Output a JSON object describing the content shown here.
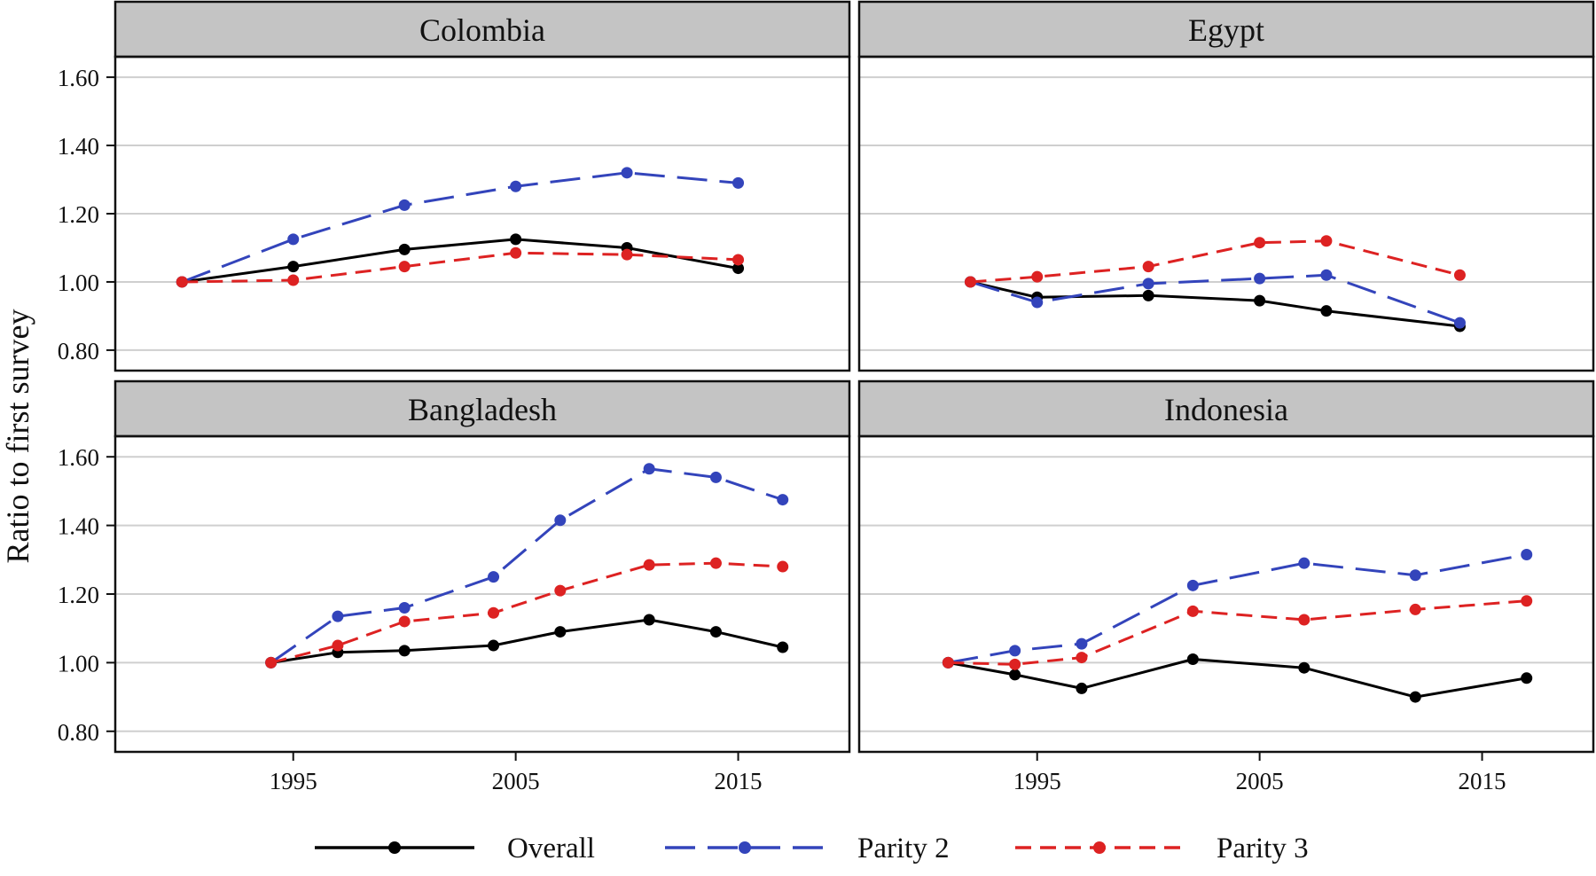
{
  "chart_data": {
    "type": "line",
    "ylabel": "Ratio to first survey",
    "ylim": [
      0.74,
      1.66
    ],
    "xlim": [
      1987,
      2020
    ],
    "y_ticks": [
      "0.80",
      "1.00",
      "1.20",
      "1.40",
      "1.60"
    ],
    "y_tick_values": [
      0.8,
      1.0,
      1.2,
      1.4,
      1.6
    ],
    "x_ticks": [
      "1995",
      "2005",
      "2015"
    ],
    "x_tick_values": [
      1995,
      2005,
      2015
    ],
    "grid": true,
    "legend_position": "bottom",
    "legend": [
      {
        "name": "Overall",
        "color": "#000000",
        "dash": "solid"
      },
      {
        "name": "Parity 2",
        "color": "#3344bb",
        "dash": "long-dash"
      },
      {
        "name": "Parity 3",
        "color": "#dd2222",
        "dash": "dash"
      }
    ],
    "panels": [
      {
        "title": "Colombia",
        "series": [
          {
            "name": "Overall",
            "x": [
              1990,
              1995,
              2000,
              2005,
              2010,
              2015
            ],
            "y": [
              1.0,
              1.045,
              1.095,
              1.125,
              1.1,
              1.04
            ]
          },
          {
            "name": "Parity 2",
            "x": [
              1990,
              1995,
              2000,
              2005,
              2010,
              2015
            ],
            "y": [
              1.0,
              1.125,
              1.225,
              1.28,
              1.32,
              1.29
            ]
          },
          {
            "name": "Parity 3",
            "x": [
              1990,
              1995,
              2000,
              2005,
              2010,
              2015
            ],
            "y": [
              1.0,
              1.005,
              1.045,
              1.085,
              1.08,
              1.065
            ]
          }
        ]
      },
      {
        "title": "Egypt",
        "series": [
          {
            "name": "Overall",
            "x": [
              1992,
              1995,
              2000,
              2005,
              2008,
              2014
            ],
            "y": [
              1.0,
              0.955,
              0.96,
              0.945,
              0.915,
              0.87
            ]
          },
          {
            "name": "Parity 2",
            "x": [
              1992,
              1995,
              2000,
              2005,
              2008,
              2014
            ],
            "y": [
              1.0,
              0.94,
              0.995,
              1.01,
              1.02,
              0.88
            ]
          },
          {
            "name": "Parity 3",
            "x": [
              1992,
              1995,
              2000,
              2005,
              2008,
              2014
            ],
            "y": [
              1.0,
              1.015,
              1.045,
              1.115,
              1.12,
              1.02
            ]
          }
        ]
      },
      {
        "title": "Bangladesh",
        "series": [
          {
            "name": "Overall",
            "x": [
              1994,
              1997,
              2000,
              2004,
              2007,
              2011,
              2014,
              2017
            ],
            "y": [
              1.0,
              1.03,
              1.035,
              1.05,
              1.09,
              1.125,
              1.09,
              1.045
            ]
          },
          {
            "name": "Parity 2",
            "x": [
              1994,
              1997,
              2000,
              2004,
              2007,
              2011,
              2014,
              2017
            ],
            "y": [
              1.0,
              1.135,
              1.16,
              1.25,
              1.415,
              1.565,
              1.54,
              1.475
            ]
          },
          {
            "name": "Parity 3",
            "x": [
              1994,
              1997,
              2000,
              2004,
              2007,
              2011,
              2014,
              2017
            ],
            "y": [
              1.0,
              1.05,
              1.12,
              1.145,
              1.21,
              1.285,
              1.29,
              1.28
            ]
          }
        ]
      },
      {
        "title": "Indonesia",
        "series": [
          {
            "name": "Overall",
            "x": [
              1991,
              1994,
              1997,
              2002,
              2007,
              2012,
              2017
            ],
            "y": [
              1.0,
              0.965,
              0.925,
              1.01,
              0.985,
              0.9,
              0.955
            ]
          },
          {
            "name": "Parity 2",
            "x": [
              1991,
              1994,
              1997,
              2002,
              2007,
              2012,
              2017
            ],
            "y": [
              1.0,
              1.035,
              1.055,
              1.225,
              1.29,
              1.255,
              1.315
            ]
          },
          {
            "name": "Parity 3",
            "x": [
              1991,
              1994,
              1997,
              2002,
              2007,
              2012,
              2017
            ],
            "y": [
              1.0,
              0.995,
              1.015,
              1.15,
              1.125,
              1.155,
              1.18
            ]
          }
        ]
      }
    ]
  }
}
